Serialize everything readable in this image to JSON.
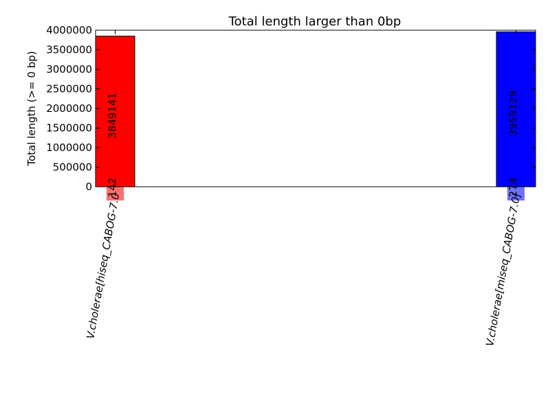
{
  "chart_data": {
    "type": "bar",
    "title": "Total length larger than 0bp",
    "ylabel": "Total length (>= 0 bp)",
    "xlabel": "",
    "ylim": [
      0,
      4000000
    ],
    "yticks": [
      "0",
      "500000",
      "1000000",
      "1500000",
      "2000000",
      "2500000",
      "3000000",
      "3500000",
      "4000000"
    ],
    "categories": [
      "V.cholerae[hiseq_CABOG-7.0",
      "V.cholerae[miseq_CABOG-7.0]"
    ],
    "series": [
      {
        "values": [
          3849141,
          3959129
        ],
        "colors": [
          "#ff0000",
          "#0000ff"
        ],
        "labels": [
          "3849141",
          "3959129"
        ]
      },
      {
        "values": [
          142,
          274
        ],
        "colors": [
          "#ff4040",
          "#4040ff"
        ],
        "labels": [
          "142",
          "274"
        ]
      }
    ],
    "grid": false,
    "legend": "none"
  }
}
